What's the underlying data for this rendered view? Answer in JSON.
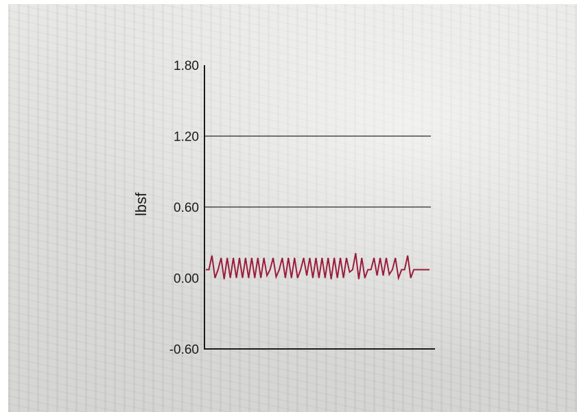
{
  "chart_data": {
    "type": "line",
    "title": "",
    "xlabel": "",
    "ylabel": "lbsf",
    "ylim": [
      -0.6,
      1.8
    ],
    "yticks": [
      1.8,
      1.2,
      0.6,
      0.0,
      -0.6
    ],
    "ytick_labels": [
      "1.80",
      "1.20",
      "0.60",
      "0.00",
      "-0.60"
    ],
    "grid": "horizontal",
    "legend": "none",
    "series": [
      {
        "color": "#9b1b3a",
        "x": [
          0,
          1,
          2,
          3,
          4,
          5,
          6,
          7,
          8,
          9,
          10,
          11,
          12,
          13,
          14,
          15,
          16,
          17,
          18,
          19,
          20,
          21,
          22,
          23,
          24,
          25,
          26,
          27,
          28,
          29,
          30,
          31,
          32,
          33,
          34,
          35,
          36,
          37,
          38,
          39,
          40,
          41,
          42,
          43,
          44,
          45,
          46,
          47,
          48,
          49,
          50,
          51,
          52,
          53,
          54,
          55,
          56,
          57,
          58,
          59,
          60,
          61,
          62,
          63,
          64,
          65,
          66,
          67,
          68,
          69,
          70
        ],
        "values": [
          0.07,
          0.07,
          0.19,
          0.0,
          0.07,
          0.17,
          -0.01,
          0.17,
          0.0,
          0.17,
          0.0,
          0.17,
          0.0,
          0.17,
          0.0,
          0.17,
          0.0,
          0.17,
          0.0,
          0.17,
          0.02,
          0.07,
          0.17,
          0.01,
          0.07,
          0.17,
          0.0,
          0.17,
          0.0,
          0.17,
          0.0,
          0.07,
          0.17,
          0.02,
          0.17,
          0.0,
          0.17,
          0.0,
          0.17,
          0.0,
          0.17,
          -0.01,
          0.17,
          0.0,
          0.17,
          0.0,
          0.17,
          0.05,
          0.07,
          0.21,
          -0.01,
          0.17,
          0.0,
          0.07,
          0.07,
          0.17,
          0.02,
          0.17,
          0.02,
          0.17,
          0.03,
          0.07,
          0.17,
          0.0,
          0.07,
          0.07,
          0.19,
          0.0,
          0.07,
          0.07,
          0.07
        ]
      }
    ]
  },
  "colors": {
    "axis": "#1a1a1a",
    "grid": "#2a2a2a",
    "series": "#9b1b3a",
    "background_photo": "#dcdcda"
  }
}
